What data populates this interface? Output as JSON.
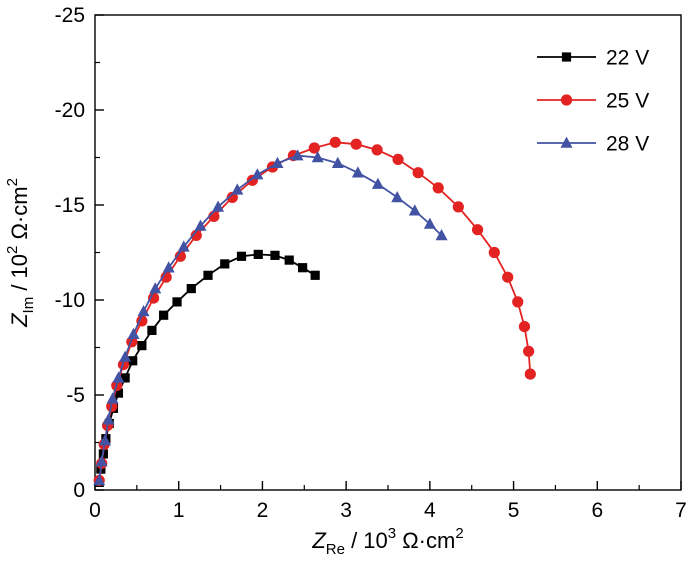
{
  "figure": {
    "kind": "nyquist-impedance-plot"
  },
  "chart_data": {
    "type": "scatter",
    "title": "",
    "xlabel_parts": [
      {
        "t": "Z",
        "s": "i"
      },
      {
        "t": "Re",
        "s": "sub"
      },
      {
        "t": " / 10",
        "s": "n"
      },
      {
        "t": "3",
        "s": "sup"
      },
      {
        "t": " Ω·cm",
        "s": "n"
      },
      {
        "t": "2",
        "s": "sup"
      }
    ],
    "ylabel_parts": [
      {
        "t": "Z",
        "s": "i"
      },
      {
        "t": "Im",
        "s": "sub"
      },
      {
        "t": " / 10",
        "s": "n"
      },
      {
        "t": "2",
        "s": "sup"
      },
      {
        "t": " Ω·cm",
        "s": "n"
      },
      {
        "t": "2",
        "s": "sup"
      }
    ],
    "xlim": [
      0,
      7
    ],
    "ylim": [
      0,
      -25
    ],
    "xticks": [
      0,
      1,
      2,
      3,
      4,
      5,
      6,
      7
    ],
    "yticks": [
      0,
      -5,
      -10,
      -15,
      -20,
      -25
    ],
    "x_minor_step": 0.5,
    "y_minor_step": 2.5,
    "grid": false,
    "legend_position": "top-right",
    "series": [
      {
        "name": "22 V",
        "color": "#000000",
        "marker": "square",
        "points": [
          [
            0.05,
            -0.4
          ],
          [
            0.07,
            -1.1
          ],
          [
            0.1,
            -1.9
          ],
          [
            0.13,
            -2.7
          ],
          [
            0.17,
            -3.5
          ],
          [
            0.22,
            -4.3
          ],
          [
            0.28,
            -5.1
          ],
          [
            0.36,
            -5.9
          ],
          [
            0.45,
            -6.8
          ],
          [
            0.56,
            -7.6
          ],
          [
            0.68,
            -8.4
          ],
          [
            0.82,
            -9.2
          ],
          [
            0.98,
            -9.9
          ],
          [
            1.15,
            -10.6
          ],
          [
            1.35,
            -11.3
          ],
          [
            1.55,
            -11.9
          ],
          [
            1.75,
            -12.3
          ],
          [
            1.95,
            -12.4
          ],
          [
            2.15,
            -12.35
          ],
          [
            2.32,
            -12.1
          ],
          [
            2.48,
            -11.7
          ],
          [
            2.63,
            -11.3
          ]
        ]
      },
      {
        "name": "25 V",
        "color": "#e32222",
        "marker": "circle",
        "points": [
          [
            0.05,
            -0.5
          ],
          [
            0.08,
            -1.4
          ],
          [
            0.11,
            -2.4
          ],
          [
            0.15,
            -3.4
          ],
          [
            0.2,
            -4.4
          ],
          [
            0.26,
            -5.5
          ],
          [
            0.34,
            -6.6
          ],
          [
            0.44,
            -7.8
          ],
          [
            0.56,
            -8.9
          ],
          [
            0.7,
            -10.1
          ],
          [
            0.85,
            -11.2
          ],
          [
            1.02,
            -12.3
          ],
          [
            1.21,
            -13.4
          ],
          [
            1.42,
            -14.4
          ],
          [
            1.64,
            -15.4
          ],
          [
            1.88,
            -16.3
          ],
          [
            2.12,
            -17.0
          ],
          [
            2.37,
            -17.6
          ],
          [
            2.62,
            -18.0
          ],
          [
            2.87,
            -18.3
          ],
          [
            3.12,
            -18.2
          ],
          [
            3.37,
            -17.9
          ],
          [
            3.62,
            -17.4
          ],
          [
            3.86,
            -16.7
          ],
          [
            4.1,
            -15.9
          ],
          [
            4.34,
            -14.9
          ],
          [
            4.57,
            -13.7
          ],
          [
            4.77,
            -12.5
          ],
          [
            4.93,
            -11.2
          ],
          [
            5.05,
            -9.9
          ],
          [
            5.13,
            -8.6
          ],
          [
            5.18,
            -7.3
          ],
          [
            5.2,
            -6.1
          ]
        ]
      },
      {
        "name": "28 V",
        "color": "#4353a4",
        "marker": "triangle",
        "points": [
          [
            0.05,
            -0.5
          ],
          [
            0.08,
            -1.5
          ],
          [
            0.12,
            -2.6
          ],
          [
            0.16,
            -3.7
          ],
          [
            0.21,
            -4.8
          ],
          [
            0.28,
            -5.9
          ],
          [
            0.36,
            -7.0
          ],
          [
            0.46,
            -8.2
          ],
          [
            0.58,
            -9.4
          ],
          [
            0.72,
            -10.6
          ],
          [
            0.88,
            -11.7
          ],
          [
            1.06,
            -12.8
          ],
          [
            1.26,
            -13.9
          ],
          [
            1.47,
            -14.9
          ],
          [
            1.7,
            -15.8
          ],
          [
            1.94,
            -16.6
          ],
          [
            2.18,
            -17.2
          ],
          [
            2.42,
            -17.6
          ],
          [
            2.66,
            -17.5
          ],
          [
            2.9,
            -17.2
          ],
          [
            3.14,
            -16.7
          ],
          [
            3.38,
            -16.1
          ],
          [
            3.61,
            -15.4
          ],
          [
            3.82,
            -14.7
          ],
          [
            4.0,
            -14.0
          ],
          [
            4.14,
            -13.4
          ]
        ]
      }
    ]
  }
}
